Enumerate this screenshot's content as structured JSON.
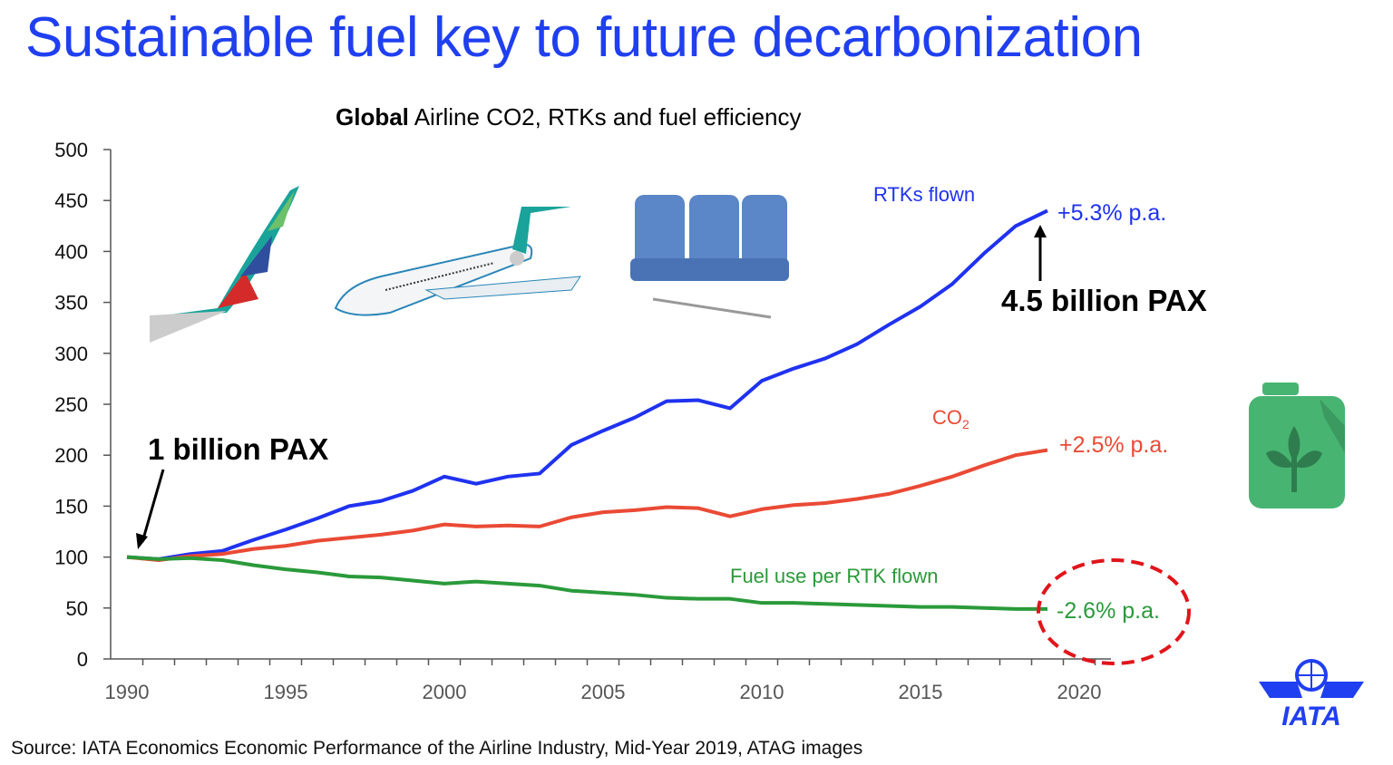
{
  "slide": {
    "title": "Sustainable fuel key to future decarbonization",
    "source": "Source: IATA Economics Economic Performance of the Airline Industry, Mid-Year 2019, ATAG images",
    "logo_text": "IATA"
  },
  "chart_data": {
    "type": "line",
    "title_bold": "Global",
    "title_rest": " Airline CO2, RTKs and fuel efficiency",
    "xlabel": "",
    "ylabel": "",
    "xlim": [
      1990,
      2020
    ],
    "ylim": [
      0,
      500
    ],
    "yticks": [
      0,
      50,
      100,
      150,
      200,
      250,
      300,
      350,
      400,
      450,
      500
    ],
    "xtick_labels": [
      1990,
      1995,
      2000,
      2005,
      2010,
      2015,
      2020
    ],
    "grid": false,
    "x": [
      1990,
      1991,
      1992,
      1993,
      1994,
      1995,
      1996,
      1997,
      1998,
      1999,
      2000,
      2001,
      2002,
      2003,
      2004,
      2005,
      2006,
      2007,
      2008,
      2009,
      2010,
      2011,
      2012,
      2013,
      2014,
      2015,
      2016,
      2017,
      2018,
      2019
    ],
    "series": [
      {
        "name": "RTKs flown",
        "color": "#1f32f0",
        "growth_label": "+5.3% p.a.",
        "values": [
          100,
          98,
          103,
          106,
          117,
          127,
          138,
          150,
          155,
          165,
          179,
          172,
          179,
          182,
          210,
          224,
          237,
          253,
          254,
          246,
          273,
          285,
          295,
          309,
          328,
          346,
          368,
          398,
          425,
          440
        ]
      },
      {
        "name": "CO",
        "name_sub": "2",
        "color": "#ea4a35",
        "growth_label": "+2.5% p.a.",
        "values": [
          100,
          97,
          101,
          103,
          108,
          111,
          116,
          119,
          122,
          126,
          132,
          130,
          131,
          130,
          139,
          144,
          146,
          149,
          148,
          140,
          147,
          151,
          153,
          157,
          162,
          170,
          179,
          190,
          200,
          205
        ]
      },
      {
        "name": "Fuel use per RTK flown",
        "color": "#2a9a3a",
        "growth_label": "-2.6% p.a.",
        "values": [
          100,
          98,
          99,
          97,
          92,
          88,
          85,
          81,
          80,
          77,
          74,
          76,
          74,
          72,
          67,
          65,
          63,
          60,
          59,
          59,
          55,
          55,
          54,
          53,
          52,
          51,
          51,
          50,
          49,
          49
        ]
      }
    ],
    "annotations": [
      {
        "text": "1 billion PAX",
        "x": 1990
      },
      {
        "text": "4.5 billion PAX",
        "x": 2019
      }
    ],
    "highlight_color": "#e0151b"
  }
}
